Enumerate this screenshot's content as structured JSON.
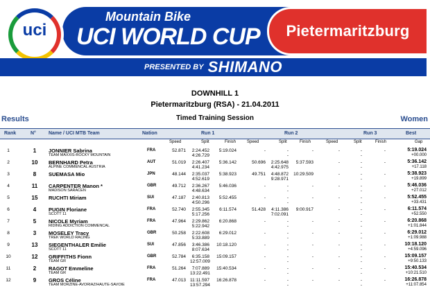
{
  "banner": {
    "logo_text": "uci",
    "series_line1": "Mountain Bike",
    "series_line2": "UCI WORLD CUP",
    "city": "Pietermaritzburg",
    "presented_by": "PRESENTED BY",
    "sponsor": "SHIMANO",
    "colors": {
      "blue": "#0a3ca5",
      "red": "#e0312c"
    }
  },
  "header": {
    "event": "DOWNHILL 1",
    "venue_date": "Pietermaritzburg (RSA) - 21.04.2011",
    "results_label": "Results",
    "session": "Timed Training Session",
    "category": "Women"
  },
  "table": {
    "columns": {
      "rank": "Rank",
      "no": "N°",
      "name_team": "Name / UCI MTB Team",
      "nation": "Nation",
      "run1": "Run 1",
      "run2": "Run 2",
      "run3": "Run 3",
      "best": "Best"
    },
    "subcolumns": {
      "speed": "Speed",
      "split": "Split",
      "finish": "Finish",
      "gap": "Gap"
    },
    "rows": [
      {
        "rank": "1",
        "no": "1",
        "name": "JONNIER Sabrina",
        "team": "TEAM MAXXIS-ROCKY MOUNTAIN",
        "nation": "FRA",
        "r1_speed": "52.871",
        "r1_split": "2:24.452",
        "r1_split2": "4:26.729",
        "r1_finish": "5:19.024",
        "r2_speed": "-",
        "r2_split": "-",
        "r2_split2": "-",
        "r2_finish": "-",
        "r3_speed": "-",
        "r3_split": "-",
        "r3_split2": "-",
        "r3_finish": "-",
        "best": "5:19.024",
        "gap": "+00.000"
      },
      {
        "rank": "2",
        "no": "10",
        "name": "BERNHARD Petra",
        "team": "ALPINE COMMENCAL AUSTRIA",
        "nation": "AUT",
        "r1_speed": "51.019",
        "r1_split": "2:26.407",
        "r1_split2": "4:41.234",
        "r1_finish": "5:36.142",
        "r2_speed": "50.696",
        "r2_split": "2:25.648",
        "r2_split2": "4:42.975",
        "r2_finish": "5:37.593",
        "r3_speed": "-",
        "r3_split": "-",
        "r3_split2": "-",
        "r3_finish": "-",
        "best": "5:36.142",
        "gap": "+17.118"
      },
      {
        "rank": "3",
        "no": "8",
        "name": "SUEMASA Mio",
        "team": "",
        "nation": "JPN",
        "r1_speed": "48.144",
        "r1_split": "2:35.037",
        "r1_split2": "4:52.619",
        "r1_finish": "5:38.923",
        "r2_speed": "49.751",
        "r2_split": "4:48.872",
        "r2_split2": "9:28.971",
        "r2_finish": "10:29.509",
        "r3_speed": "-",
        "r3_split": "-",
        "r3_split2": "-",
        "r3_finish": "-",
        "best": "5:38.923",
        "gap": "+19.899"
      },
      {
        "rank": "4",
        "no": "11",
        "name": "CARPENTER Manon *",
        "team": "MADISON SARACEN",
        "nation": "GBR",
        "r1_speed": "49.712",
        "r1_split": "2:36.267",
        "r1_split2": "4:48.634",
        "r1_finish": "5:46.036",
        "r2_speed": "-",
        "r2_split": "-",
        "r2_split2": "-",
        "r2_finish": "-",
        "r3_speed": "-",
        "r3_split": "-",
        "r3_split2": "-",
        "r3_finish": "-",
        "best": "5:46.036",
        "gap": "+27.012"
      },
      {
        "rank": "5",
        "no": "15",
        "name": "RUCHTI Miriam",
        "team": "",
        "nation": "SUI",
        "r1_speed": "47.187",
        "r1_split": "2:40.813",
        "r1_split2": "4:50.296",
        "r1_finish": "5:52.455",
        "r2_speed": "-",
        "r2_split": "-",
        "r2_split2": "-",
        "r2_finish": "-",
        "r3_speed": "-",
        "r3_split": "-",
        "r3_split2": "-",
        "r3_finish": "-",
        "best": "5:52.455",
        "gap": "+33.431"
      },
      {
        "rank": "6",
        "no": "4",
        "name": "PUGIN Floriane",
        "team": "SCOTT 11",
        "nation": "FRA",
        "r1_speed": "52.740",
        "r1_split": "2:55.345",
        "r1_split2": "5:17.256",
        "r1_finish": "6:11.574",
        "r2_speed": "51.428",
        "r2_split": "4:11.386",
        "r2_split2": "7:02.091",
        "r2_finish": "9:00.917",
        "r3_speed": "-",
        "r3_split": "-",
        "r3_split2": "-",
        "r3_finish": "-",
        "best": "6:11.574",
        "gap": "+52.550"
      },
      {
        "rank": "7",
        "no": "5",
        "name": "NICOLE Myriam",
        "team": "RIDING ADDICTION COMMENCAL",
        "nation": "FRA",
        "r1_speed": "47.964",
        "r1_split": "2:29.862",
        "r1_split2": "5:22.942",
        "r1_finish": "6:20.868",
        "r2_speed": "-",
        "r2_split": "-",
        "r2_split2": "-",
        "r2_finish": "-",
        "r3_speed": "-",
        "r3_split": "-",
        "r3_split2": "-",
        "r3_finish": "-",
        "best": "6:20.868",
        "gap": "+1:01.844"
      },
      {
        "rank": "8",
        "no": "3",
        "name": "MOSELEY Tracy",
        "team": "TREK WORLD RACING",
        "nation": "GBR",
        "r1_speed": "50.258",
        "r1_split": "2:22.608",
        "r1_split2": "5:33.889",
        "r1_finish": "6:29.012",
        "r2_speed": "-",
        "r2_split": "-",
        "r2_split2": "-",
        "r2_finish": "-",
        "r3_speed": "-",
        "r3_split": "-",
        "r3_split2": "-",
        "r3_finish": "-",
        "best": "6:29.012",
        "gap": "+1:09.988"
      },
      {
        "rank": "9",
        "no": "13",
        "name": "SIEGENTHALER Emilie",
        "team": "SCOTT 11",
        "nation": "SUI",
        "r1_speed": "47.856",
        "r1_split": "3:46.386",
        "r1_split2": "8:07.634",
        "r1_finish": "10:18.120",
        "r2_speed": "-",
        "r2_split": "-",
        "r2_split2": "-",
        "r2_finish": "-",
        "r3_speed": "-",
        "r3_split": "-",
        "r3_split2": "-",
        "r3_finish": "-",
        "best": "10:18.120",
        "gap": "+4:59.096"
      },
      {
        "rank": "10",
        "no": "12",
        "name": "GRIFFITHS Fionn",
        "team": "TEAM GR",
        "nation": "GBR",
        "r1_speed": "52.784",
        "r1_split": "6:35.158",
        "r1_split2": "12:57.009",
        "r1_finish": "15:09.157",
        "r2_speed": "-",
        "r2_split": "-",
        "r2_split2": "-",
        "r2_finish": "-",
        "r3_speed": "-",
        "r3_split": "-",
        "r3_split2": "-",
        "r3_finish": "-",
        "best": "15:09.157",
        "gap": "+9:50.133"
      },
      {
        "rank": "11",
        "no": "2",
        "name": "RAGOT Emmeline",
        "team": "TEAM GR",
        "nation": "FRA",
        "r1_speed": "51.264",
        "r1_split": "7:07.889",
        "r1_split2": "13:22.491",
        "r1_finish": "15:40.534",
        "r2_speed": "-",
        "r2_split": "-",
        "r2_split2": "-",
        "r2_finish": "-",
        "r3_speed": "-",
        "r3_split": "-",
        "r3_split2": "-",
        "r3_finish": "-",
        "best": "15:40.534",
        "gap": "+10:21.510"
      },
      {
        "rank": "12",
        "no": "9",
        "name": "GROS Céline",
        "team": "TEAM MORZINE-AVORIAZ/HAUTE-SAVOIE",
        "nation": "FRA",
        "r1_speed": "47.013",
        "r1_split": "11:11.597",
        "r1_split2": "13:57.294",
        "r1_finish": "16:26.878",
        "r2_speed": "-",
        "r2_split": "-",
        "r2_split2": "-",
        "r2_finish": "-",
        "r3_speed": "-",
        "r3_split": "-",
        "r3_split2": "-",
        "r3_finish": "-",
        "best": "16:26.878",
        "gap": "+11:07.854"
      }
    ]
  }
}
